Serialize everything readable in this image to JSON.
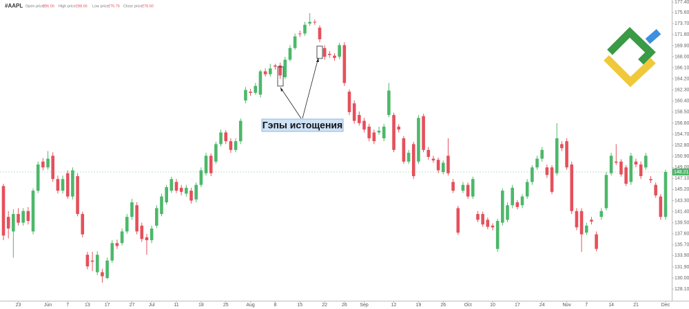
{
  "header": {
    "symbol": "#AAPL",
    "fields": [
      {
        "label": "Open price:",
        "value": "286.56"
      },
      {
        "label": "High price:",
        "value": "288.65"
      },
      {
        "label": "Low price:",
        "value": "276.76"
      },
      {
        "label": "Close price:",
        "value": "278.60"
      }
    ]
  },
  "chart_data": {
    "type": "candlestick",
    "annotation": "Гэпы истощения",
    "up_color": "#4cb86a",
    "down_color": "#e5505b",
    "grid": false,
    "ylim": [
      126.1,
      177.75
    ],
    "yticks": [
      {
        "value": 177.4,
        "label": "177.40"
      },
      {
        "value": 175.6,
        "label": "175.60"
      },
      {
        "value": 173.7,
        "label": "173.70"
      },
      {
        "value": 171.8,
        "label": "171.80"
      },
      {
        "value": 169.9,
        "label": "169.90"
      },
      {
        "value": 168,
        "label": "168.00"
      },
      {
        "value": 166.1,
        "label": "166.10"
      },
      {
        "value": 164.2,
        "label": "164.20"
      },
      {
        "value": 162.3,
        "label": "162.30"
      },
      {
        "value": 160.4,
        "label": "160.40"
      },
      {
        "value": 158.5,
        "label": "158.50"
      },
      {
        "value": 156.6,
        "label": "156.60"
      },
      {
        "value": 154.7,
        "label": "154.70"
      },
      {
        "value": 152.8,
        "label": "152.80"
      },
      {
        "value": 150.9,
        "label": "150.90"
      },
      {
        "value": 149,
        "label": "149.00"
      },
      {
        "value": 147.1,
        "label": "147.10"
      },
      {
        "value": 145.2,
        "label": "145.20"
      },
      {
        "value": 143.3,
        "label": "143.30"
      },
      {
        "value": 141.4,
        "label": "141.40"
      },
      {
        "value": 139.5,
        "label": "139.50"
      },
      {
        "value": 137.6,
        "label": "137.60"
      },
      {
        "value": 135.7,
        "label": "135.70"
      },
      {
        "value": 133.9,
        "label": "133.90"
      },
      {
        "value": 131.9,
        "label": "131.90"
      },
      {
        "value": 130,
        "label": "130.00"
      },
      {
        "value": 128.1,
        "label": "128.10"
      }
    ],
    "categories": [
      null,
      null,
      null,
      "23",
      null,
      null,
      null,
      null,
      null,
      "Jun",
      null,
      null,
      null,
      "7",
      null,
      null,
      null,
      "13",
      null,
      null,
      null,
      "17",
      null,
      null,
      null,
      null,
      "27",
      null,
      null,
      null,
      "Jul",
      null,
      null,
      null,
      null,
      "11",
      null,
      null,
      null,
      null,
      "18",
      null,
      null,
      null,
      null,
      "25",
      null,
      null,
      null,
      null,
      "Aug",
      null,
      null,
      null,
      null,
      "8",
      null,
      null,
      null,
      null,
      "15",
      null,
      null,
      null,
      null,
      "22",
      null,
      null,
      null,
      "26",
      null,
      null,
      null,
      "Sep",
      null,
      null,
      null,
      null,
      null,
      "12",
      null,
      null,
      null,
      null,
      "19",
      null,
      null,
      null,
      null,
      "26",
      null,
      null,
      null,
      null,
      "Oct",
      null,
      null,
      null,
      null,
      "10",
      null,
      null,
      null,
      null,
      "17",
      null,
      null,
      null,
      null,
      "24",
      null,
      null,
      null,
      null,
      "Nov",
      null,
      null,
      null,
      "7",
      null,
      null,
      null,
      null,
      "14",
      null,
      null,
      null,
      null,
      "21",
      null,
      null,
      null,
      null,
      null,
      "Dec"
    ],
    "open": [
      145.8,
      140.5,
      138,
      141,
      139.5,
      141.5,
      138,
      145,
      150,
      149,
      151,
      147,
      145,
      148,
      144,
      147.5,
      141,
      134,
      133,
      131,
      131,
      130,
      133,
      136,
      136,
      138,
      140.5,
      142.5,
      139,
      137,
      136.5,
      139,
      141,
      143,
      145,
      146.5,
      145.5,
      144.5,
      145,
      143.5,
      146,
      148,
      151,
      150,
      153,
      155,
      153.5,
      152,
      153.5,
      160.5,
      162,
      161.8,
      161.5,
      165.5,
      165,
      166.5,
      166.5,
      164.5,
      167.5,
      169.5,
      172,
      172,
      173.7,
      174,
      173,
      169.5,
      168.5,
      168.2,
      168,
      170,
      162,
      160,
      158,
      157,
      156,
      155,
      155,
      154,
      158,
      158,
      156,
      154,
      150,
      153,
      150,
      157.8,
      152,
      150.5,
      150.3,
      148.2,
      151,
      146.5,
      142,
      145,
      146,
      144,
      141,
      141,
      140,
      139,
      135,
      139.5,
      140,
      142.5,
      143,
      142.5,
      144,
      146.5,
      149,
      150.5,
      149,
      149,
      148,
      153,
      153.5,
      149.5,
      141.5,
      141.5,
      137.8,
      140,
      137.5,
      140.5,
      142,
      148,
      150,
      150,
      149,
      146.5,
      150,
      149.5,
      149,
      147,
      146,
      144,
      140.5
    ],
    "high": [
      146.2,
      141.5,
      141.8,
      142,
      142,
      142.2,
      145.4,
      150,
      150.6,
      151.8,
      151.6,
      147.6,
      147.6,
      148.5,
      149,
      148,
      141.4,
      134.5,
      134.5,
      134.6,
      131.6,
      133.5,
      136.5,
      136.6,
      138.5,
      141,
      143.6,
      143,
      139.5,
      137.6,
      139,
      142.5,
      144.5,
      146,
      147.4,
      147,
      146,
      146,
      145.5,
      146.4,
      149,
      151.5,
      151.4,
      153.4,
      155.5,
      155.4,
      154,
      154,
      157.4,
      162.8,
      162.5,
      163.5,
      165.8,
      166,
      166.8,
      166.8,
      167,
      168,
      170,
      172,
      172.5,
      174,
      175.5,
      174.4,
      173.4,
      170,
      169,
      168.6,
      170.4,
      170.5,
      162.4,
      160.5,
      158.6,
      157.5,
      156.5,
      155.5,
      156,
      156.5,
      163.5,
      158.4,
      156.4,
      154.4,
      152,
      153.4,
      158,
      158.2,
      152.5,
      151,
      150.7,
      150.2,
      154,
      147,
      142.4,
      146.5,
      146.4,
      147.4,
      141.5,
      141.4,
      140.4,
      139.4,
      140.2,
      145.4,
      143,
      146,
      143.4,
      144.4,
      147,
      149.4,
      151,
      152.5,
      149.5,
      149.4,
      156.6,
      153.5,
      154,
      150,
      142,
      142,
      139.5,
      140.5,
      138,
      142,
      148.2,
      151.5,
      153,
      150.4,
      149.4,
      151.5,
      150.5,
      150,
      151.5,
      147.5,
      146.4,
      144.4,
      148.6
    ],
    "low": [
      136.5,
      136.8,
      133.5,
      139,
      139,
      139.2,
      137.5,
      144.6,
      148.5,
      148.6,
      146.5,
      144.5,
      144.5,
      143.6,
      143.5,
      140.6,
      137,
      131.5,
      131.2,
      130.5,
      129.2,
      129.8,
      132.6,
      135,
      135.6,
      137.6,
      140,
      137.5,
      136.2,
      134,
      136,
      138.6,
      140.6,
      142.6,
      144.6,
      144.6,
      144.2,
      144,
      142.8,
      143,
      145.6,
      147.6,
      147.5,
      149.6,
      152.6,
      153,
      151.5,
      151.6,
      153,
      160,
      161.3,
      161.5,
      161,
      164.6,
      164.6,
      165.8,
      164.2,
      164.2,
      167.2,
      169.2,
      171.4,
      171.6,
      173.3,
      173.5,
      170.5,
      167.5,
      167.8,
      167.3,
      167.6,
      163,
      158,
      156.5,
      156.2,
      155,
      153.5,
      153,
      154.6,
      153.5,
      157.6,
      151.6,
      155,
      149.6,
      149.6,
      147,
      149.6,
      151.6,
      150.3,
      149.8,
      148,
      147.8,
      147.6,
      144.6,
      137.4,
      144.6,
      143.6,
      143.6,
      139.6,
      138.8,
      138.4,
      138.2,
      134.5,
      139,
      139.6,
      142,
      141.8,
      142,
      143.6,
      146,
      148.6,
      150,
      147.2,
      144.4,
      147.6,
      151.8,
      148.6,
      141,
      138.2,
      134.5,
      137.4,
      139.2,
      134.6,
      140,
      141.6,
      147.6,
      149.4,
      147.4,
      145.8,
      146,
      149,
      147,
      148.6,
      146.3,
      143.8,
      140,
      140
    ],
    "close": [
      137.3,
      138.5,
      141,
      139.5,
      141.5,
      139.8,
      145,
      149.5,
      149,
      150.5,
      147,
      145,
      147,
      144,
      148.5,
      141,
      137.5,
      132,
      132.8,
      134,
      130.3,
      133,
      136,
      135.5,
      138,
      140.5,
      143,
      138,
      136.7,
      136.5,
      138.5,
      142,
      144,
      145.6,
      147,
      145,
      144.8,
      145.5,
      143.3,
      146,
      148.5,
      151,
      148,
      153,
      155,
      153.5,
      152,
      153.5,
      157,
      162.3,
      161.8,
      163,
      165.5,
      165,
      166,
      166.3,
      164.8,
      167.5,
      169.5,
      171.5,
      171.9,
      173.5,
      174,
      173.9,
      171,
      168,
      168.3,
      167.8,
      170,
      163.5,
      158.5,
      157,
      156.6,
      155.5,
      154,
      153.5,
      155.3,
      156,
      162.2,
      152,
      155.5,
      150,
      151.5,
      147.5,
      157.5,
      152,
      150.8,
      150.2,
      148.5,
      149.8,
      148,
      145,
      137.8,
      146,
      144,
      147,
      140,
      139.2,
      138.8,
      138.7,
      139.8,
      145,
      142.5,
      145.5,
      142.2,
      144,
      146.5,
      149,
      150.5,
      152,
      147.7,
      144.8,
      154,
      152.3,
      149,
      141.5,
      138.7,
      137.5,
      139,
      139.7,
      135,
      141.5,
      147.7,
      151,
      149.8,
      147.8,
      146.2,
      151,
      149.5,
      147.5,
      151,
      146.8,
      144.2,
      140.5,
      148.21
    ]
  }
}
